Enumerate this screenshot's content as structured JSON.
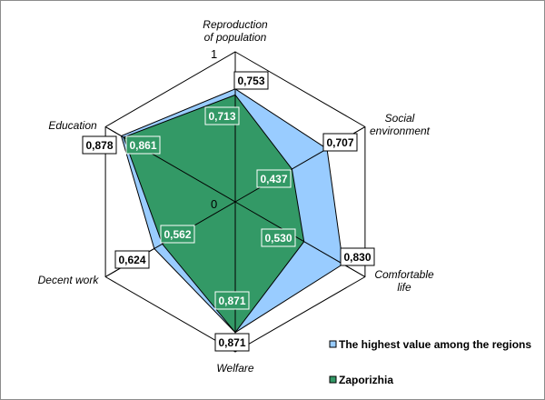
{
  "chart_data": {
    "type": "radar",
    "categories": [
      "Reproduction of population",
      "Social environment",
      "Comfortable life",
      "Welfare",
      "Decent work",
      "Education"
    ],
    "category_lines": [
      [
        "Reproduction",
        "of population"
      ],
      [
        "Social",
        "environment"
      ],
      [
        "Comfortable",
        "life"
      ],
      [
        "Welfare"
      ],
      [
        "Decent work"
      ],
      [
        "Education"
      ]
    ],
    "range": [
      0,
      1
    ],
    "ticks": [
      "0",
      "1"
    ],
    "grid": true,
    "legend_position": "bottom-right",
    "series": [
      {
        "name": "The highest value among the regions",
        "values": [
          0.753,
          0.707,
          0.83,
          0.871,
          0.624,
          0.878
        ],
        "labels": [
          "0,753",
          "0,707",
          "0,830",
          "0,871",
          "0,624",
          "0,878"
        ],
        "color": "#99ccff"
      },
      {
        "name": "Zaporizhia",
        "values": [
          0.713,
          0.437,
          0.53,
          0.871,
          0.562,
          0.861
        ],
        "labels": [
          "0,713",
          "0,437",
          "0,530",
          "0,871",
          "0,562",
          "0,861"
        ],
        "color": "#339966"
      }
    ]
  }
}
